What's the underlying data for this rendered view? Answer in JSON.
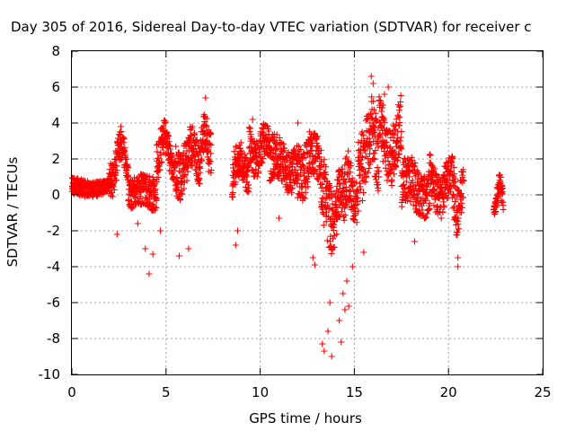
{
  "chart_data": {
    "type": "scatter",
    "title": "Day 305 of 2016, Sidereal Day-to-day VTEC variation (SDTVAR) for receiver c",
    "xlabel": "GPS time / hours",
    "ylabel": "SDTVAR / TECUs",
    "xlim": [
      0,
      25
    ],
    "ylim": [
      -10,
      8
    ],
    "xticks": [
      0,
      5,
      10,
      15,
      20,
      25
    ],
    "xtick_labels": [
      "0",
      "5",
      "10",
      "15",
      "20",
      "25"
    ],
    "yticks": [
      -10,
      -8,
      -6,
      -4,
      -2,
      0,
      2,
      4,
      6,
      8
    ],
    "ytick_labels": [
      "-10",
      "-8",
      "-6",
      "-4",
      "-2",
      "0",
      "2",
      "4",
      "6",
      "8"
    ],
    "grid": true,
    "marker": "+",
    "color": "#ff0000",
    "clusters": [
      {
        "t": [
          0.0,
          2.0
        ],
        "center": [
          0.5,
          0.3
        ],
        "amp": [
          0.6,
          0.5
        ],
        "outliers": []
      },
      {
        "t": [
          2.0,
          3.0
        ],
        "center": [
          0.8,
          2.8
        ],
        "amp": [
          1.3,
          1.0
        ],
        "outliers": [
          [
            2.4,
            -2.2
          ],
          [
            2.6,
            3.8
          ]
        ]
      },
      {
        "t": [
          3.0,
          4.5
        ],
        "center": [
          0.3,
          0.0
        ],
        "amp": [
          1.0,
          1.2
        ],
        "outliers": [
          [
            4.1,
            -4.4
          ],
          [
            3.9,
            -3.0
          ],
          [
            4.3,
            -3.3
          ],
          [
            3.5,
            -1.6
          ]
        ]
      },
      {
        "t": [
          4.5,
          5.5
        ],
        "center": [
          1.5,
          3.2
        ],
        "amp": [
          1.6,
          0.8
        ],
        "outliers": [
          [
            4.7,
            -2.0
          ],
          [
            5.7,
            -3.4
          ]
        ]
      },
      {
        "t": [
          5.5,
          6.8
        ],
        "center": [
          1.0,
          2.6
        ],
        "amp": [
          1.8,
          1.4
        ],
        "outliers": [
          [
            6.2,
            -3.0
          ],
          [
            6.4,
            3.8
          ]
        ]
      },
      {
        "t": [
          6.8,
          7.4
        ],
        "center": [
          2.2,
          3.5
        ],
        "amp": [
          1.4,
          1.6
        ],
        "outliers": [
          [
            7.1,
            5.4
          ]
        ]
      },
      {
        "t": [
          8.5,
          9.4
        ],
        "center": [
          1.0,
          2.0
        ],
        "amp": [
          1.5,
          1.2
        ],
        "outliers": [
          [
            8.7,
            -2.8
          ],
          [
            8.8,
            -2.0
          ]
        ]
      },
      {
        "t": [
          9.4,
          10.5
        ],
        "center": [
          2.0,
          3.2
        ],
        "amp": [
          1.4,
          1.2
        ],
        "outliers": [
          [
            9.6,
            4.2
          ]
        ]
      },
      {
        "t": [
          10.5,
          12.0
        ],
        "center": [
          1.2,
          2.2
        ],
        "amp": [
          1.6,
          1.4
        ],
        "outliers": [
          [
            11.0,
            -1.3
          ],
          [
            12.0,
            4.0
          ]
        ]
      },
      {
        "t": [
          12.0,
          13.2
        ],
        "center": [
          1.0,
          2.5
        ],
        "amp": [
          2.0,
          1.6
        ],
        "outliers": [
          [
            12.8,
            -3.5
          ],
          [
            12.9,
            -3.9
          ]
        ]
      },
      {
        "t": [
          13.2,
          14.4
        ],
        "center": [
          -1.5,
          0.5
        ],
        "amp": [
          2.5,
          2.0
        ],
        "outliers": [
          [
            13.3,
            -8.3
          ],
          [
            13.4,
            -8.7
          ],
          [
            13.8,
            -9.0
          ],
          [
            13.6,
            -7.6
          ],
          [
            14.3,
            -8.2
          ],
          [
            13.7,
            -6.0
          ],
          [
            14.2,
            -7.0
          ],
          [
            14.4,
            -5.5
          ],
          [
            14.5,
            -6.4
          ],
          [
            14.6,
            -4.8
          ]
        ]
      },
      {
        "t": [
          14.4,
          15.2
        ],
        "center": [
          -0.5,
          1.0
        ],
        "amp": [
          2.0,
          1.5
        ],
        "outliers": [
          [
            14.7,
            -6.2
          ],
          [
            14.9,
            -4.0
          ]
        ]
      },
      {
        "t": [
          15.2,
          16.3
        ],
        "center": [
          1.5,
          3.5
        ],
        "amp": [
          2.5,
          2.5
        ],
        "outliers": [
          [
            15.9,
            6.6
          ],
          [
            16.0,
            6.2
          ],
          [
            15.5,
            -3.2
          ]
        ]
      },
      {
        "t": [
          16.3,
          17.5
        ],
        "center": [
          2.0,
          4.0
        ],
        "amp": [
          2.0,
          2.0
        ],
        "outliers": [
          [
            16.8,
            6.0
          ],
          [
            16.6,
            5.6
          ]
        ]
      },
      {
        "t": [
          17.5,
          19.0
        ],
        "center": [
          -0.2,
          1.0
        ],
        "amp": [
          1.8,
          1.5
        ],
        "outliers": [
          [
            18.2,
            -2.6
          ]
        ]
      },
      {
        "t": [
          19.0,
          20.2
        ],
        "center": [
          -0.3,
          1.2
        ],
        "amp": [
          1.6,
          1.4
        ],
        "outliers": [
          [
            19.9,
            1.8
          ]
        ]
      },
      {
        "t": [
          20.2,
          20.8
        ],
        "center": [
          -1.0,
          0.5
        ],
        "amp": [
          2.0,
          1.4
        ],
        "outliers": [
          [
            20.5,
            -4.0
          ],
          [
            20.5,
            -3.5
          ]
        ]
      },
      {
        "t": [
          22.4,
          22.9
        ],
        "center": [
          -0.6,
          0.6
        ],
        "amp": [
          0.6,
          0.8
        ],
        "outliers": []
      }
    ]
  }
}
